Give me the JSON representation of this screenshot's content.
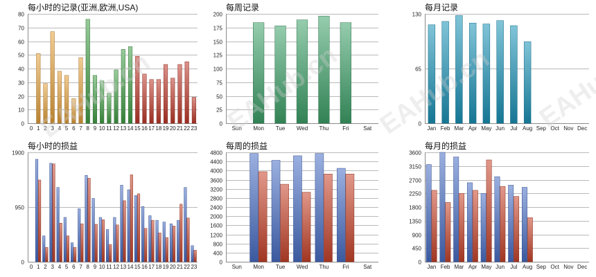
{
  "watermark": "EAHub.cn",
  "chart_data": [
    {
      "type": "bar",
      "title": "每小时的记录(亚洲,欧洲,USA)",
      "categories": [
        "0",
        "1",
        "2",
        "3",
        "4",
        "5",
        "6",
        "7",
        "8",
        "9",
        "10",
        "11",
        "12",
        "13",
        "14",
        "15",
        "16",
        "17",
        "18",
        "19",
        "20",
        "21",
        "22",
        "23"
      ],
      "values": [
        0,
        51,
        29,
        67,
        38,
        35,
        18,
        48,
        76,
        35,
        31,
        22,
        39,
        54,
        56,
        49,
        36,
        32,
        32,
        43,
        33,
        43,
        45,
        19
      ],
      "bar_colors_by_region": [
        "#e6a23c",
        "#e6a23c",
        "#e6a23c",
        "#e6a23c",
        "#e6a23c",
        "#e6a23c",
        "#e6a23c",
        "#e6a23c",
        "#43a047",
        "#43a047",
        "#43a047",
        "#43a047",
        "#43a047",
        "#43a047",
        "#43a047",
        "#c0392b",
        "#c0392b",
        "#c0392b",
        "#c0392b",
        "#c0392b",
        "#c0392b",
        "#c0392b",
        "#c0392b",
        "#c0392b"
      ],
      "ylim": [
        0,
        80
      ],
      "yticks": [
        0,
        10,
        20,
        30,
        40,
        50,
        60,
        70,
        80
      ]
    },
    {
      "type": "bar",
      "title": "每周记录",
      "categories": [
        "Sun",
        "Mon",
        "Tue",
        "Wed",
        "Thu",
        "Fri",
        "Sat"
      ],
      "values": [
        0,
        184,
        178,
        189,
        196,
        184,
        0
      ],
      "color": "#3fa36a",
      "ylim": [
        0,
        200
      ],
      "yticks": [
        0,
        25,
        50,
        75,
        100,
        125,
        150,
        175,
        200
      ]
    },
    {
      "type": "bar",
      "title": "每月记录",
      "categories": [
        "Jan",
        "Feb",
        "Mar",
        "Apr",
        "May",
        "Jun",
        "Jul",
        "Aug",
        "Sep",
        "Oct",
        "Nov",
        "Dec"
      ],
      "values": [
        117,
        121,
        128,
        119,
        118,
        122,
        116,
        97,
        0,
        0,
        0,
        0
      ],
      "color": "#1a93b8",
      "ylim": [
        0,
        130
      ],
      "yticks": [
        0,
        65,
        130
      ]
    },
    {
      "type": "bar",
      "title": "每小时的损益",
      "categories": [
        "0",
        "1",
        "2",
        "3",
        "4",
        "5",
        "6",
        "7",
        "8",
        "9",
        "10",
        "11",
        "12",
        "13",
        "14",
        "15",
        "16",
        "17",
        "18",
        "19",
        "20",
        "21",
        "22",
        "23"
      ],
      "series": [
        {
          "values": [
            0,
            1780,
            450,
            1710,
            1290,
            770,
            330,
            920,
            1500,
            1100,
            770,
            560,
            770,
            1330,
            1250,
            1150,
            960,
            800,
            720,
            690,
            660,
            720,
            1290,
            280
          ]
        },
        {
          "values": [
            0,
            1420,
            250,
            1700,
            670,
            450,
            250,
            660,
            1450,
            650,
            730,
            300,
            640,
            1060,
            1510,
            1180,
            580,
            720,
            500,
            420,
            620,
            1000,
            760,
            200
          ]
        }
      ],
      "series_colors": [
        "#4a6fc7",
        "#c8442a"
      ],
      "ylim": [
        0,
        1900
      ],
      "yticks": [
        0,
        950,
        1900
      ]
    },
    {
      "type": "bar",
      "title": "每周的损益",
      "categories": [
        "Sun",
        "Mon",
        "Tue",
        "Wed",
        "Thu",
        "Fri",
        "Sat"
      ],
      "series": [
        {
          "values": [
            0,
            4750,
            4450,
            4650,
            4750,
            4100,
            0
          ]
        },
        {
          "values": [
            0,
            3950,
            3400,
            3050,
            3850,
            3850,
            0
          ]
        }
      ],
      "series_colors": [
        "#4a6fc7",
        "#c8442a"
      ],
      "ylim": [
        0,
        4800
      ],
      "yticks": [
        0,
        400,
        800,
        1200,
        1600,
        2000,
        2400,
        2800,
        3200,
        3600,
        4000,
        4400,
        4800
      ]
    },
    {
      "type": "bar",
      "title": "每月的损益",
      "categories": [
        "Jan",
        "Feb",
        "Mar",
        "Apr",
        "May",
        "Jun",
        "Jul",
        "Aug",
        "Sep",
        "Oct",
        "Nov",
        "Dec"
      ],
      "series": [
        {
          "values": [
            3200,
            3600,
            3450,
            2600,
            2250,
            2800,
            2520,
            2450,
            0,
            0,
            0,
            0
          ]
        },
        {
          "values": [
            2350,
            1950,
            2250,
            2350,
            3350,
            2480,
            2150,
            1450,
            0,
            0,
            0,
            0
          ]
        }
      ],
      "series_colors": [
        "#4a6fc7",
        "#c8442a"
      ],
      "ylim": [
        0,
        3600
      ],
      "yticks": [
        0,
        450,
        900,
        1350,
        1800,
        2250,
        2700,
        3150,
        3600
      ]
    }
  ]
}
